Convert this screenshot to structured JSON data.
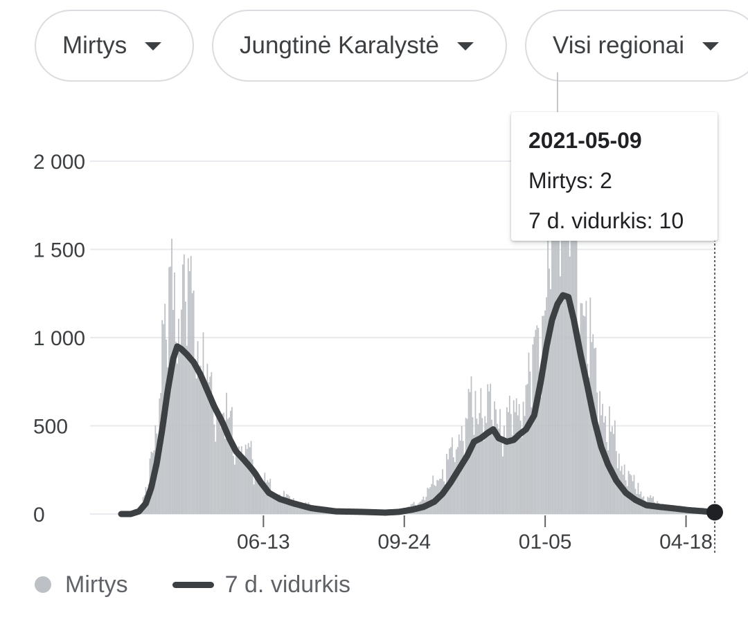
{
  "filters": {
    "metric": "Mirtys",
    "country": "Jungtinė Karalystė",
    "region": "Visi regionai"
  },
  "tooltip": {
    "date": "2021-05-09",
    "deaths_label": "Mirtys: 2",
    "avg_label": "7 d. vidurkis: 10"
  },
  "legend": {
    "bars": "Mirtys",
    "line": "7 d. vidurkis"
  },
  "colors": {
    "bars": "#bdc1c6",
    "line": "#3c4043",
    "grid": "#e8eaed"
  },
  "chart_data": {
    "type": "bar",
    "title": "",
    "xlabel": "",
    "ylabel": "",
    "x_start": "2020-03-01",
    "x_end": "2021-05-09",
    "x_ticks": [
      "06-13",
      "09-24",
      "01-05",
      "04-18"
    ],
    "x_tick_dates": [
      "2020-06-13",
      "2020-09-24",
      "2021-01-05",
      "2021-04-18"
    ],
    "y_ticks": [
      0,
      500,
      1000,
      1500,
      2000
    ],
    "y_tick_labels": [
      "0",
      "500",
      "1 000",
      "1 500",
      "2 000"
    ],
    "ylim": [
      0,
      2000
    ],
    "grid": true,
    "legend_position": "bottom-left",
    "highlight": {
      "date": "2021-05-09",
      "deaths": 2,
      "avg": 10
    },
    "series": [
      {
        "name": "Mirtys",
        "type": "bar",
        "anchors": [
          [
            "2020-03-01",
            0
          ],
          [
            "2020-03-08",
            1
          ],
          [
            "2020-03-15",
            30
          ],
          [
            "2020-03-20",
            120
          ],
          [
            "2020-03-25",
            380
          ],
          [
            "2020-03-30",
            700
          ],
          [
            "2020-04-04",
            950
          ],
          [
            "2020-04-08",
            1120
          ],
          [
            "2020-04-12",
            1000
          ],
          [
            "2020-04-16",
            1050
          ],
          [
            "2020-04-21",
            1180
          ],
          [
            "2020-04-26",
            880
          ],
          [
            "2020-05-01",
            720
          ],
          [
            "2020-05-07",
            590
          ],
          [
            "2020-05-14",
            520
          ],
          [
            "2020-05-21",
            420
          ],
          [
            "2020-05-28",
            330
          ],
          [
            "2020-06-04",
            270
          ],
          [
            "2020-06-11",
            180
          ],
          [
            "2020-06-20",
            110
          ],
          [
            "2020-06-30",
            80
          ],
          [
            "2020-07-10",
            55
          ],
          [
            "2020-07-25",
            25
          ],
          [
            "2020-08-10",
            15
          ],
          [
            "2020-08-25",
            12
          ],
          [
            "2020-09-05",
            10
          ],
          [
            "2020-09-15",
            15
          ],
          [
            "2020-09-25",
            25
          ],
          [
            "2020-10-05",
            60
          ],
          [
            "2020-10-15",
            140
          ],
          [
            "2020-10-25",
            240
          ],
          [
            "2020-11-01",
            340
          ],
          [
            "2020-11-08",
            470
          ],
          [
            "2020-11-15",
            520
          ],
          [
            "2020-11-22",
            560
          ],
          [
            "2020-11-29",
            480
          ],
          [
            "2020-12-06",
            460
          ],
          [
            "2020-12-13",
            480
          ],
          [
            "2020-12-20",
            560
          ],
          [
            "2020-12-27",
            720
          ],
          [
            "2021-01-03",
            950
          ],
          [
            "2021-01-08",
            1280
          ],
          [
            "2021-01-13",
            1560
          ],
          [
            "2021-01-19",
            1700
          ],
          [
            "2021-01-24",
            1480
          ],
          [
            "2021-01-29",
            1200
          ],
          [
            "2021-02-05",
            900
          ],
          [
            "2021-02-12",
            650
          ],
          [
            "2021-02-19",
            460
          ],
          [
            "2021-02-26",
            320
          ],
          [
            "2021-03-05",
            200
          ],
          [
            "2021-03-12",
            130
          ],
          [
            "2021-03-19",
            90
          ],
          [
            "2021-03-26",
            60
          ],
          [
            "2021-04-02",
            45
          ],
          [
            "2021-04-09",
            30
          ],
          [
            "2021-04-16",
            25
          ],
          [
            "2021-04-23",
            18
          ],
          [
            "2021-04-30",
            12
          ],
          [
            "2021-05-09",
            2
          ]
        ]
      },
      {
        "name": "7 d. vidurkis",
        "type": "line",
        "anchors": [
          [
            "2020-03-01",
            0
          ],
          [
            "2020-03-08",
            0
          ],
          [
            "2020-03-14",
            15
          ],
          [
            "2020-03-19",
            60
          ],
          [
            "2020-03-23",
            150
          ],
          [
            "2020-03-27",
            290
          ],
          [
            "2020-03-31",
            480
          ],
          [
            "2020-04-04",
            700
          ],
          [
            "2020-04-08",
            880
          ],
          [
            "2020-04-11",
            950
          ],
          [
            "2020-04-14",
            935
          ],
          [
            "2020-04-18",
            905
          ],
          [
            "2020-04-23",
            860
          ],
          [
            "2020-04-28",
            790
          ],
          [
            "2020-05-03",
            700
          ],
          [
            "2020-05-08",
            610
          ],
          [
            "2020-05-14",
            520
          ],
          [
            "2020-05-19",
            430
          ],
          [
            "2020-05-24",
            355
          ],
          [
            "2020-05-30",
            305
          ],
          [
            "2020-06-04",
            260
          ],
          [
            "2020-06-07",
            230
          ],
          [
            "2020-06-11",
            180
          ],
          [
            "2020-06-17",
            120
          ],
          [
            "2020-06-25",
            85
          ],
          [
            "2020-07-05",
            60
          ],
          [
            "2020-07-18",
            33
          ],
          [
            "2020-08-05",
            15
          ],
          [
            "2020-08-25",
            12
          ],
          [
            "2020-09-10",
            8
          ],
          [
            "2020-09-20",
            12
          ],
          [
            "2020-09-30",
            25
          ],
          [
            "2020-10-08",
            40
          ],
          [
            "2020-10-16",
            70
          ],
          [
            "2020-10-22",
            115
          ],
          [
            "2020-10-28",
            180
          ],
          [
            "2020-11-03",
            255
          ],
          [
            "2020-11-09",
            330
          ],
          [
            "2020-11-14",
            410
          ],
          [
            "2020-11-19",
            430
          ],
          [
            "2020-11-24",
            460
          ],
          [
            "2020-11-28",
            480
          ],
          [
            "2020-12-02",
            430
          ],
          [
            "2020-12-08",
            410
          ],
          [
            "2020-12-13",
            420
          ],
          [
            "2020-12-17",
            450
          ],
          [
            "2020-12-22",
            480
          ],
          [
            "2020-12-28",
            560
          ],
          [
            "2021-01-02",
            760
          ],
          [
            "2021-01-06",
            950
          ],
          [
            "2021-01-10",
            1100
          ],
          [
            "2021-01-14",
            1190
          ],
          [
            "2021-01-18",
            1240
          ],
          [
            "2021-01-22",
            1230
          ],
          [
            "2021-01-26",
            1100
          ],
          [
            "2021-01-31",
            900
          ],
          [
            "2021-02-05",
            720
          ],
          [
            "2021-02-10",
            530
          ],
          [
            "2021-02-15",
            380
          ],
          [
            "2021-02-20",
            280
          ],
          [
            "2021-02-26",
            190
          ],
          [
            "2021-03-05",
            120
          ],
          [
            "2021-03-12",
            80
          ],
          [
            "2021-03-20",
            50
          ],
          [
            "2021-03-30",
            40
          ],
          [
            "2021-04-09",
            32
          ],
          [
            "2021-04-20",
            22
          ],
          [
            "2021-04-30",
            16
          ],
          [
            "2021-05-09",
            10
          ]
        ]
      }
    ]
  }
}
